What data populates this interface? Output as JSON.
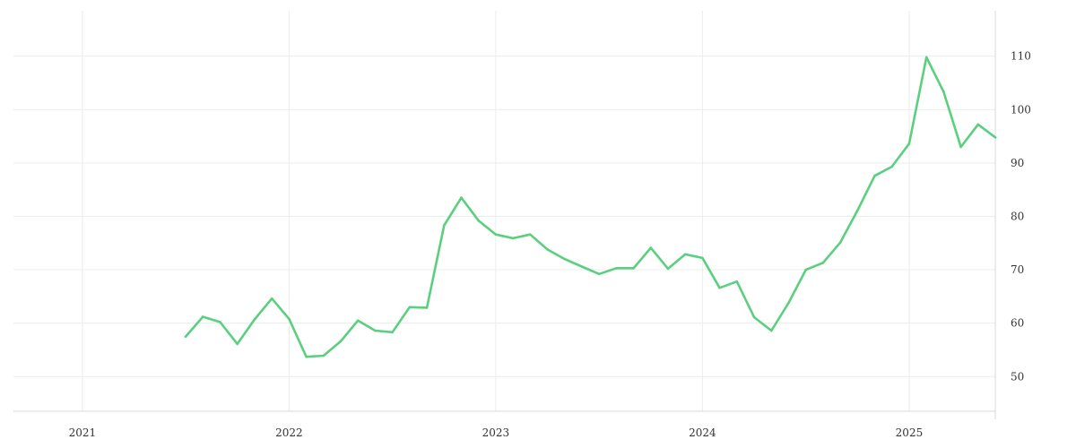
{
  "chart_data": {
    "type": "line",
    "title": "",
    "xlabel": "",
    "ylabel": "",
    "x_ticks": [
      "2021",
      "2022",
      "2023",
      "2024",
      "2025"
    ],
    "y_ticks": [
      50,
      60,
      70,
      80,
      90,
      100,
      110
    ],
    "xlim": [
      "2020-09",
      "2025-06"
    ],
    "ylim": [
      43.5,
      118.5
    ],
    "y_axis_side": "right",
    "grid": true,
    "legend": "none",
    "line_color": "#5ad07f",
    "series": [
      {
        "x": [
          "2021-07",
          "2021-08",
          "2021-09",
          "2021-10",
          "2021-11",
          "2021-12",
          "2022-01",
          "2022-02",
          "2022-03",
          "2022-04",
          "2022-05",
          "2022-06",
          "2022-07",
          "2022-08",
          "2022-09",
          "2022-10",
          "2022-11",
          "2022-12",
          "2023-01",
          "2023-02",
          "2023-03",
          "2023-04",
          "2023-05",
          "2023-06",
          "2023-07",
          "2023-08",
          "2023-09",
          "2023-10",
          "2023-11",
          "2023-12",
          "2024-01",
          "2024-02",
          "2024-03",
          "2024-04",
          "2024-05",
          "2024-06",
          "2024-07",
          "2024-08",
          "2024-09",
          "2024-10",
          "2024-11",
          "2024-12",
          "2025-01",
          "2025-02",
          "2025-03",
          "2025-04",
          "2025-05",
          "2025-06"
        ],
        "values": [
          57.5,
          61.2,
          60.2,
          56.1,
          60.7,
          64.6,
          60.8,
          53.7,
          53.9,
          56.6,
          60.5,
          58.6,
          58.3,
          63.0,
          62.9,
          78.3,
          83.5,
          79.2,
          76.6,
          75.9,
          76.6,
          73.8,
          72.0,
          70.6,
          69.2,
          70.3,
          70.3,
          74.1,
          70.2,
          72.9,
          72.2,
          66.6,
          67.8,
          61.1,
          58.6,
          63.8,
          70.0,
          71.3,
          75.1,
          81.1,
          87.6,
          89.3,
          93.6,
          109.8,
          103.3,
          93.0,
          97.2,
          94.8
        ]
      }
    ]
  }
}
